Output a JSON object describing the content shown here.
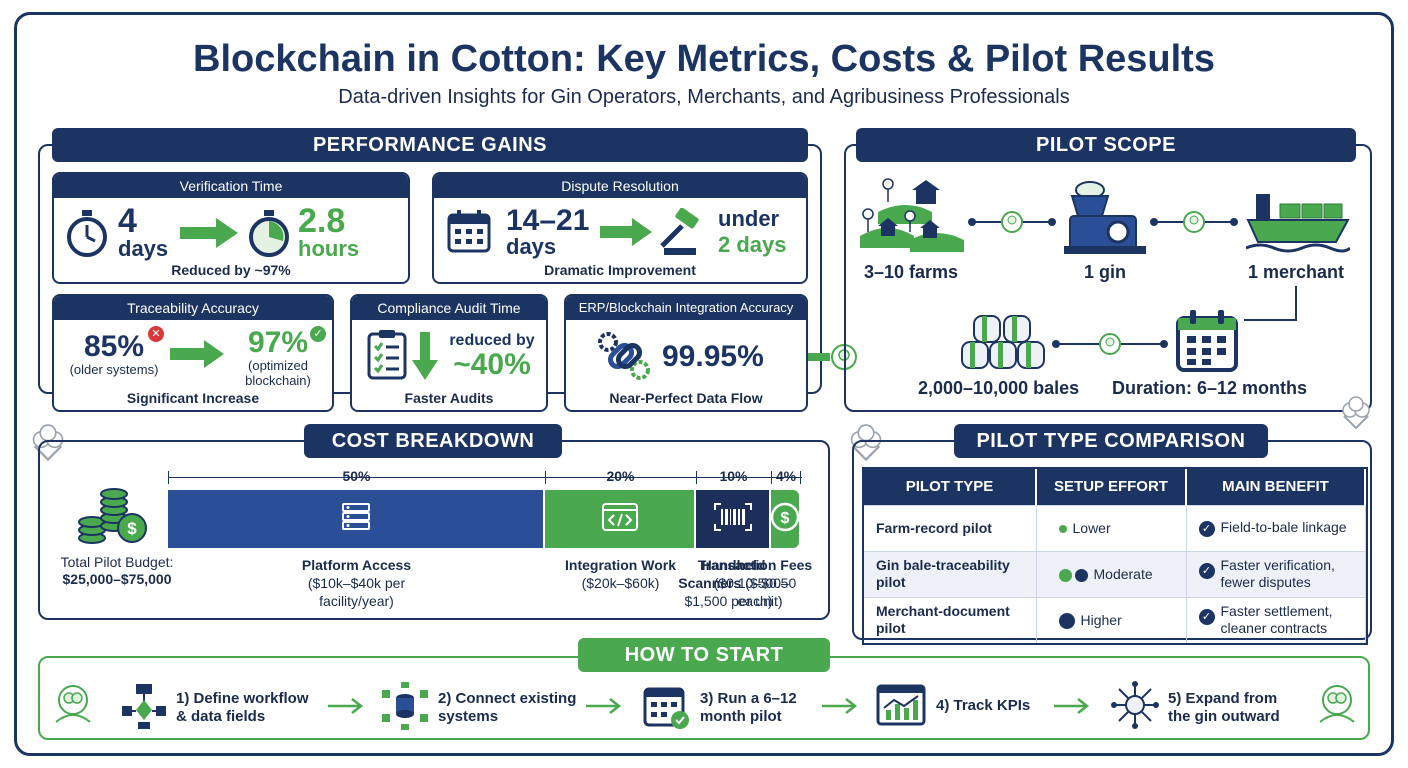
{
  "header": {
    "title": "Blockchain in Cotton: Key Metrics, Costs & Pilot Results",
    "subtitle": "Data-driven Insights for Gin Operators, Merchants, and Agribusiness Professionals"
  },
  "performance": {
    "heading": "PERFORMANCE GAINS",
    "verification": {
      "title": "Verification Time",
      "before_value": "4",
      "before_unit": "days",
      "after_value": "2.8",
      "after_unit": "hours",
      "caption": "Reduced by ~97%"
    },
    "dispute": {
      "title": "Dispute Resolution",
      "before_value": "14–21",
      "before_unit": "days",
      "after_line1": "under",
      "after_line2": "2 days",
      "caption": "Dramatic Improvement"
    },
    "traceability": {
      "title": "Traceability Accuracy",
      "before_value": "85%",
      "before_note": "(older systems)",
      "after_value": "97%",
      "after_note": "(optimized blockchain)",
      "caption": "Significant Increase"
    },
    "compliance": {
      "title": "Compliance Audit Time",
      "line1": "reduced by",
      "line2": "~40%",
      "caption": "Faster Audits"
    },
    "erp": {
      "title": "ERP/Blockchain Integration Accuracy",
      "value": "99.95%",
      "caption": "Near-Perfect Data Flow"
    }
  },
  "pilot_scope": {
    "heading": "PILOT SCOPE",
    "farms": "3–10 farms",
    "gin": "1 gin",
    "merchant": "1 merchant",
    "bales": "2,000–10,000 bales",
    "duration": "Duration: 6–12 months"
  },
  "cost": {
    "heading": "COST BREAKDOWN",
    "budget_label": "Total Pilot Budget:",
    "budget_value": "$25,000–$75,000",
    "segments": [
      {
        "pct": "50%",
        "value": 50,
        "name": "Platform Access",
        "detail": "($10k–$40k per facility/year)",
        "color": "#2b4f96",
        "icon": "server-icon"
      },
      {
        "pct": "20%",
        "value": 20,
        "name": "Integration Work",
        "detail": "($20k–$60k)",
        "color": "#4aa84f",
        "icon": "code-icon"
      },
      {
        "pct": "10%",
        "value": 10,
        "name": "Handheld Scanners ($500–$1,500 per unit)",
        "detail": "",
        "color": "#1c2f5a",
        "icon": "barcode-icon"
      },
      {
        "pct": "4%",
        "value": 4,
        "name": "Transaction Fees ($0.10–$0.50 each)",
        "detail": "",
        "color": "#4aa84f",
        "icon": "dollar-coin-icon"
      }
    ]
  },
  "comparison": {
    "heading": "PILOT TYPE COMPARISON",
    "columns": [
      "PILOT TYPE",
      "SETUP EFFORT",
      "MAIN BENEFIT"
    ],
    "rows": [
      {
        "type": "Farm-record pilot",
        "effort": "Lower",
        "benefit": "Field-to-bale linkage"
      },
      {
        "type": "Gin bale-traceability pilot",
        "effort": "Moderate",
        "benefit": "Faster verification, fewer disputes"
      },
      {
        "type": "Merchant-document pilot",
        "effort": "Higher",
        "benefit": "Faster settlement, cleaner contracts"
      }
    ]
  },
  "how_to_start": {
    "heading": "HOW TO START",
    "steps": [
      {
        "label": "1) Define workflow & data fields",
        "icon": "workflow-icon"
      },
      {
        "label": "2) Connect existing systems",
        "icon": "database-connect-icon"
      },
      {
        "label": "3) Run a 6–12 month pilot",
        "icon": "calendar-run-icon"
      },
      {
        "label": "4) Track KPIs",
        "icon": "chart-icon"
      },
      {
        "label": "5) Expand from the gin outward",
        "icon": "network-expand-icon"
      }
    ]
  },
  "colors": {
    "navy": "#1c3461",
    "green": "#4aa84f",
    "blue": "#2b4f96"
  }
}
